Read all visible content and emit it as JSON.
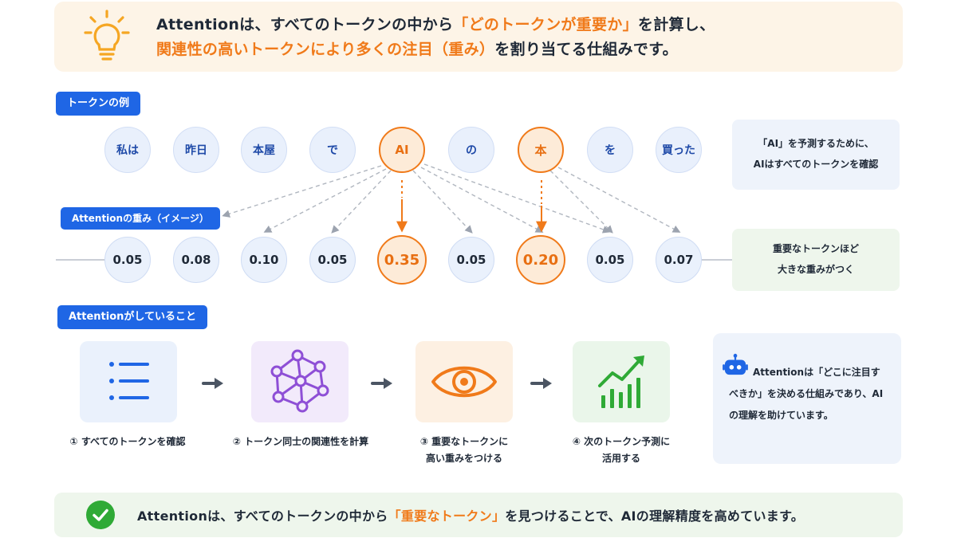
{
  "banner": {
    "line1_a": "Attentionは、すべてのトークンの中から",
    "line1_b": "「どのトークンが重要か」",
    "line1_c": "を計算し、",
    "line2_a": "関連性の高いトークンにより多くの注目（重み）",
    "line2_b": "を割り当てる仕組みです。",
    "icon": "lightbulb-icon"
  },
  "tokens_section": {
    "label": "トークンの例",
    "tokens": [
      {
        "text": "私は",
        "highlight": false
      },
      {
        "text": "昨日",
        "highlight": false
      },
      {
        "text": "本屋",
        "highlight": false
      },
      {
        "text": "で",
        "highlight": false
      },
      {
        "text": "AI",
        "highlight": true
      },
      {
        "text": "の",
        "highlight": false
      },
      {
        "text": "本",
        "highlight": true
      },
      {
        "text": "を",
        "highlight": false
      },
      {
        "text": "買った",
        "highlight": false
      }
    ],
    "note_line1": "「AI」を予測するために、",
    "note_line2": "AIはすべてのトークンを確認"
  },
  "weights_section": {
    "label": "Attentionの重み（イメージ）",
    "weights": [
      {
        "value": "0.05",
        "highlight": false
      },
      {
        "value": "0.08",
        "highlight": false
      },
      {
        "value": "0.10",
        "highlight": false
      },
      {
        "value": "0.05",
        "highlight": false
      },
      {
        "value": "0.35",
        "highlight": true
      },
      {
        "value": "0.05",
        "highlight": false
      },
      {
        "value": "0.20",
        "highlight": true
      },
      {
        "value": "0.05",
        "highlight": false
      },
      {
        "value": "0.07",
        "highlight": false
      }
    ],
    "note_line1": "重要なトークンほど",
    "note_line2": "大きな重みがつく"
  },
  "steps_section": {
    "label": "Attentionがしていること",
    "steps": [
      {
        "line1": "① すべてのトークンを確認",
        "line2": "",
        "icon": "list-icon"
      },
      {
        "line1": "② トークン同士の関連性を計算",
        "line2": "",
        "icon": "network-icon"
      },
      {
        "line1": "③ 重要なトークンに",
        "line2": "高い重みをつける",
        "icon": "eye-icon"
      },
      {
        "line1": "④ 次のトークン予測に",
        "line2": "活用する",
        "icon": "growth-chart-icon"
      }
    ],
    "robot_text": "Attentionは「どこに注目すべきか」を決める仕組みであり、AIの理解を助けています。",
    "robot_icon": "robot-icon"
  },
  "footer": {
    "text_a": "Attentionは、すべてのトークンの中から",
    "text_b": "「重要なトークン」",
    "text_c": "を見つけることで、AIの理解精度を高めています。",
    "icon": "check-circle-icon"
  },
  "colors": {
    "accent_blue": "#1f66e5",
    "accent_orange": "#f07a1a",
    "accent_purple": "#8e4fd6",
    "accent_green": "#2faa36"
  }
}
